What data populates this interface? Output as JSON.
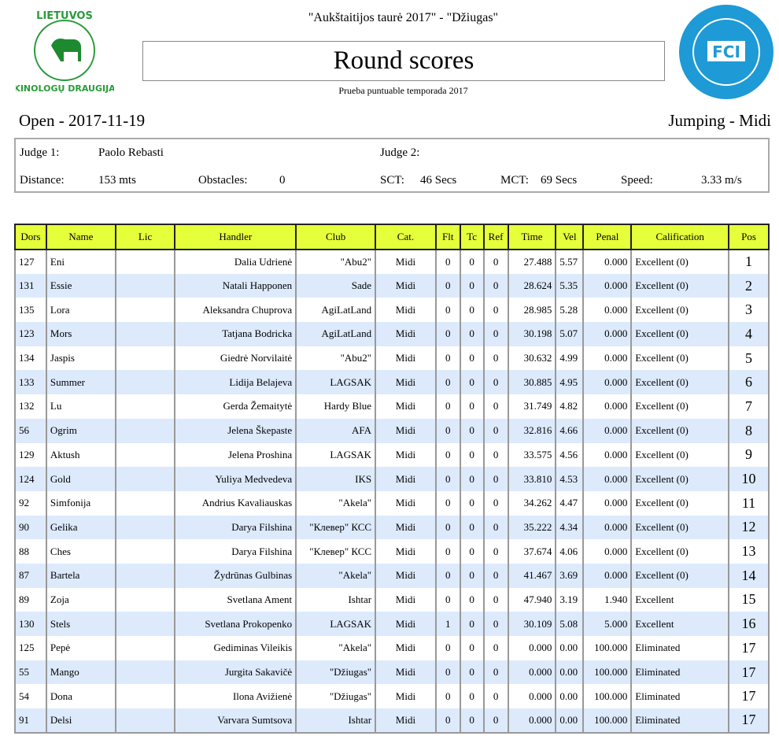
{
  "header": {
    "event": "\"Aukštaitijos taurė 2017\"  - \"Džiugas\"",
    "title": "Round scores",
    "subtitle": "Prueba  puntuable temporada 2017",
    "left_logo": "LIETUVOS KINOLOGŲ DRAUGIJA",
    "right_logo": "FEDERATION CYNOLOGIQUE INTERNATIONALE FCI",
    "open": "Open - 2017-11-19",
    "round": "Jumping  - Midi"
  },
  "info": {
    "judge1_label": "Judge 1:",
    "judge1": "Paolo Rebasti",
    "judge2_label": "Judge 2:",
    "distance_label": "Distance:",
    "distance": "153  mts",
    "obstacles_label": "Obstacles:",
    "obstacles": "0",
    "sct_label": "SCT:",
    "sct": "46  Secs",
    "mct_label": "MCT:",
    "mct": "69  Secs",
    "speed_label": "Speed:",
    "speed": "3.33  m/s"
  },
  "colors": {
    "header": "#e5ff3a",
    "alt_row": "#ddeafc",
    "logo_green": "#2a9a3a",
    "fci_blue": "#1e9ad6"
  },
  "columns": [
    "Dors",
    "Name",
    "Lic",
    "Handler",
    "Club",
    "Cat.",
    "Flt",
    "Tc",
    "Ref",
    "Time",
    "Vel",
    "Penal",
    "Calification",
    "Pos"
  ],
  "rows": [
    [
      "127",
      "Eni",
      "",
      "Dalia Udrienė",
      "\"Abu2\"",
      "Midi",
      "0",
      "0",
      "0",
      "27.488",
      "5.57",
      "0.000",
      "Excellent  (0)",
      "1"
    ],
    [
      "131",
      "Essie",
      "",
      "Natali Happonen",
      "Sade",
      "Midi",
      "0",
      "0",
      "0",
      "28.624",
      "5.35",
      "0.000",
      "Excellent  (0)",
      "2"
    ],
    [
      "135",
      "Lora",
      "",
      "Aleksandra Chuprova",
      "AgiLatLand",
      "Midi",
      "0",
      "0",
      "0",
      "28.985",
      "5.28",
      "0.000",
      "Excellent  (0)",
      "3"
    ],
    [
      "123",
      "Mors",
      "",
      "Tatjana Bodricka",
      "AgiLatLand",
      "Midi",
      "0",
      "0",
      "0",
      "30.198",
      "5.07",
      "0.000",
      "Excellent  (0)",
      "4"
    ],
    [
      "134",
      "Jaspis",
      "",
      "Giedrė Norvilaitė",
      "\"Abu2\"",
      "Midi",
      "0",
      "0",
      "0",
      "30.632",
      "4.99",
      "0.000",
      "Excellent  (0)",
      "5"
    ],
    [
      "133",
      "Summer",
      "",
      "Lidija Belajeva",
      "LAGSAK",
      "Midi",
      "0",
      "0",
      "0",
      "30.885",
      "4.95",
      "0.000",
      "Excellent  (0)",
      "6"
    ],
    [
      "132",
      "Lu",
      "",
      "Gerda Žemaitytė",
      "Hardy Blue",
      "Midi",
      "0",
      "0",
      "0",
      "31.749",
      "4.82",
      "0.000",
      "Excellent  (0)",
      "7"
    ],
    [
      "56",
      "Ogrim",
      "",
      "Jelena Škepaste",
      "AFA",
      "Midi",
      "0",
      "0",
      "0",
      "32.816",
      "4.66",
      "0.000",
      "Excellent  (0)",
      "8"
    ],
    [
      "129",
      "Aktush",
      "",
      "Jelena Proshina",
      "LAGSAK",
      "Midi",
      "0",
      "0",
      "0",
      "33.575",
      "4.56",
      "0.000",
      "Excellent  (0)",
      "9"
    ],
    [
      "124",
      "Gold",
      "",
      "Yuliya Medvedeva",
      "IKS",
      "Midi",
      "0",
      "0",
      "0",
      "33.810",
      "4.53",
      "0.000",
      "Excellent  (0)",
      "10"
    ],
    [
      "92",
      "Simfonija",
      "",
      "Andrius Kavaliauskas",
      "\"Akela\"",
      "Midi",
      "0",
      "0",
      "0",
      "34.262",
      "4.47",
      "0.000",
      "Excellent  (0)",
      "11"
    ],
    [
      "90",
      "Gelika",
      "",
      "Darya Filshina",
      "\"Клевер\" КСС",
      "Midi",
      "0",
      "0",
      "0",
      "35.222",
      "4.34",
      "0.000",
      "Excellent  (0)",
      "12"
    ],
    [
      "88",
      "Ches",
      "",
      "Darya Filshina",
      "\"Клевер\" КСС",
      "Midi",
      "0",
      "0",
      "0",
      "37.674",
      "4.06",
      "0.000",
      "Excellent  (0)",
      "13"
    ],
    [
      "87",
      "Bartela",
      "",
      "Žydrūnas Gulbinas",
      "\"Akela\"",
      "Midi",
      "0",
      "0",
      "0",
      "41.467",
      "3.69",
      "0.000",
      "Excellent  (0)",
      "14"
    ],
    [
      "89",
      "Zoja",
      "",
      "Svetlana Ament",
      "Ishtar",
      "Midi",
      "0",
      "0",
      "0",
      "47.940",
      "3.19",
      "1.940",
      "Excellent",
      "15"
    ],
    [
      "130",
      "Stels",
      "",
      "Svetlana Prokopenko",
      "LAGSAK",
      "Midi",
      "1",
      "0",
      "0",
      "30.109",
      "5.08",
      "5.000",
      "Excellent",
      "16"
    ],
    [
      "125",
      "Pepė",
      "",
      "Gediminas Vileikis",
      "\"Akela\"",
      "Midi",
      "0",
      "0",
      "0",
      "0.000",
      "0.00",
      "100.000",
      "Eliminated",
      "17"
    ],
    [
      "55",
      "Mango",
      "",
      "Jurgita Sakavičė",
      "\"Džiugas\"",
      "Midi",
      "0",
      "0",
      "0",
      "0.000",
      "0.00",
      "100.000",
      "Eliminated",
      "17"
    ],
    [
      "54",
      "Dona",
      "",
      "Ilona Avižienė",
      "\"Džiugas\"",
      "Midi",
      "0",
      "0",
      "0",
      "0.000",
      "0.00",
      "100.000",
      "Eliminated",
      "17"
    ],
    [
      "91",
      "Delsi",
      "",
      "Varvara Sumtsova",
      "Ishtar",
      "Midi",
      "0",
      "0",
      "0",
      "0.000",
      "0.00",
      "100.000",
      "Eliminated",
      "17"
    ]
  ]
}
